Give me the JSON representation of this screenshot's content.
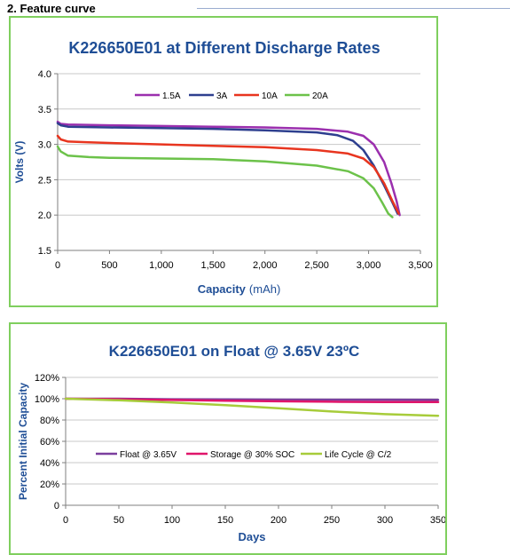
{
  "section_title": "2. Feature curve",
  "colors": {
    "panel_border": "#7fcf5e",
    "title_blue": "#1f4e96",
    "grid": "#c8c8c8",
    "axis": "#7f7f7f",
    "series_1_5A": "#9b2fae",
    "series_3A": "#2e3f8f",
    "series_10A": "#e8351f",
    "series_20A": "#6cc24a",
    "float": "#7b3f9e",
    "storage": "#e0156b",
    "life_cycle": "#a7cc3a"
  },
  "chart_data": [
    {
      "type": "line",
      "title": "K226650E01 at Different Discharge Rates",
      "xlabel": "Capacity",
      "xlabel_unit": "(mAh)",
      "ylabel": "Volts (V)",
      "xlim": [
        0,
        3500
      ],
      "ylim": [
        1.5,
        4.0
      ],
      "xticks": [
        0,
        500,
        1000,
        1500,
        2000,
        2500,
        3000,
        3500
      ],
      "xtick_labels": [
        "0",
        "500",
        "1,000",
        "1,500",
        "2,000",
        "2,500",
        "3,000",
        "3,500"
      ],
      "yticks": [
        1.5,
        2.0,
        2.5,
        3.0,
        3.5,
        4.0
      ],
      "ytick_labels": [
        "1.5",
        "2.0",
        "2.5",
        "3.0",
        "3.5",
        "4.0"
      ],
      "grid": true,
      "legend_position": "top",
      "series": [
        {
          "name": "1.5A",
          "color": "#9b2fae",
          "x": [
            0,
            30,
            100,
            500,
            1000,
            1500,
            2000,
            2500,
            2800,
            2950,
            3050,
            3150,
            3220,
            3270,
            3300
          ],
          "y": [
            3.32,
            3.29,
            3.28,
            3.27,
            3.26,
            3.25,
            3.24,
            3.22,
            3.18,
            3.12,
            3.0,
            2.75,
            2.45,
            2.2,
            2.0
          ]
        },
        {
          "name": "3A",
          "color": "#2e3f8f",
          "x": [
            0,
            30,
            100,
            500,
            1000,
            1500,
            2000,
            2500,
            2700,
            2850,
            2950,
            3050,
            3150,
            3230,
            3280
          ],
          "y": [
            3.3,
            3.27,
            3.25,
            3.24,
            3.23,
            3.22,
            3.2,
            3.17,
            3.13,
            3.05,
            2.92,
            2.7,
            2.42,
            2.18,
            2.02
          ]
        },
        {
          "name": "10A",
          "color": "#e8351f",
          "x": [
            0,
            30,
            100,
            300,
            500,
            1000,
            1500,
            2000,
            2500,
            2800,
            2950,
            3050,
            3150,
            3230,
            3290
          ],
          "y": [
            3.12,
            3.07,
            3.04,
            3.03,
            3.02,
            3.0,
            2.98,
            2.96,
            2.92,
            2.87,
            2.8,
            2.68,
            2.45,
            2.2,
            2.02
          ]
        },
        {
          "name": "20A",
          "color": "#6cc24a",
          "x": [
            0,
            30,
            100,
            300,
            500,
            1000,
            1500,
            2000,
            2500,
            2800,
            2950,
            3050,
            3130,
            3190,
            3230
          ],
          "y": [
            2.97,
            2.9,
            2.84,
            2.82,
            2.81,
            2.8,
            2.79,
            2.76,
            2.7,
            2.62,
            2.52,
            2.38,
            2.18,
            2.02,
            1.97
          ]
        }
      ]
    },
    {
      "type": "line",
      "title": "K226650E01 on Float @ 3.65V 23ºC",
      "xlabel": "Days",
      "ylabel": "Percent Initial Capacity",
      "xlim": [
        0,
        350
      ],
      "ylim": [
        0,
        120
      ],
      "xticks": [
        0,
        50,
        100,
        150,
        200,
        250,
        300,
        350
      ],
      "xtick_labels": [
        "0",
        "50",
        "100",
        "150",
        "200",
        "250",
        "300",
        "350"
      ],
      "yticks": [
        0,
        20,
        40,
        60,
        80,
        100,
        120
      ],
      "ytick_labels": [
        "0",
        "20%",
        "40%",
        "60%",
        "80%",
        "100%",
        "120%"
      ],
      "grid": true,
      "legend_position": "center",
      "series": [
        {
          "name": "Float @ 3.65V",
          "color": "#7b3f9e",
          "x": [
            0,
            50,
            100,
            150,
            200,
            250,
            300,
            350
          ],
          "y": [
            100,
            100,
            99.5,
            99.3,
            99.2,
            99.1,
            99.1,
            99.0
          ]
        },
        {
          "name": "Storage @ 30% SOC",
          "color": "#e0156b",
          "x": [
            0,
            50,
            100,
            150,
            200,
            250,
            300,
            350
          ],
          "y": [
            100,
            99.5,
            98.8,
            98.2,
            97.6,
            97.2,
            96.8,
            96.8
          ]
        },
        {
          "name": "Life Cycle @ C/2",
          "color": "#a7cc3a",
          "x": [
            0,
            50,
            100,
            150,
            200,
            250,
            300,
            350
          ],
          "y": [
            100,
            98.5,
            96.5,
            94,
            91,
            88,
            85.5,
            84
          ]
        }
      ]
    }
  ]
}
